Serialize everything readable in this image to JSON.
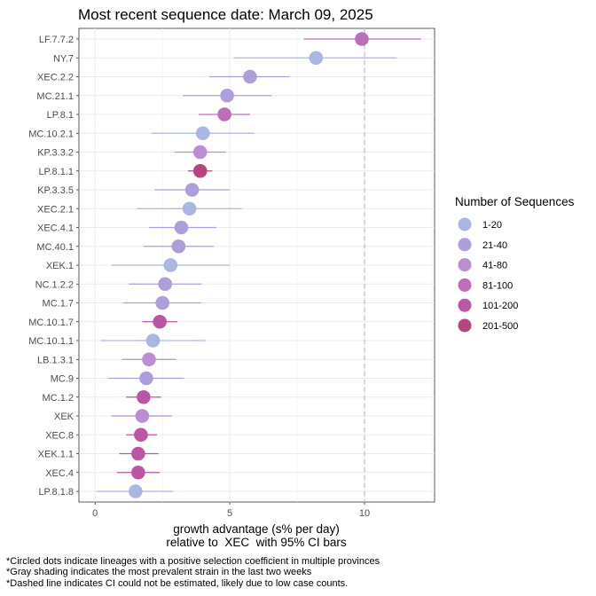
{
  "chart_data": {
    "type": "scatter",
    "title": "Most recent sequence date: March 09, 2025",
    "xlabel_line1": "growth advantage (s% per day)",
    "xlabel_line2": "relative to  XEC  with 95% CI bars",
    "xlim": [
      -0.6,
      12.6
    ],
    "xticks": [
      "0",
      "5",
      "10"
    ],
    "grid": true,
    "legend_position": "right",
    "legend": {
      "title": "Number of Sequences",
      "entries": [
        {
          "label": "1-20",
          "color": "#aab6e4"
        },
        {
          "label": "21-40",
          "color": "#ae9fdc"
        },
        {
          "label": "41-80",
          "color": "#bb8dd4"
        },
        {
          "label": "81-100",
          "color": "#bc6fb8"
        },
        {
          "label": "101-200",
          "color": "#bb56a4"
        },
        {
          "label": "201-500",
          "color": "#b5447f"
        }
      ]
    },
    "reference_line": {
      "x": 10,
      "style": "dashed"
    },
    "points": [
      {
        "lineage": "LF.7.7.2",
        "value": 9.9,
        "lo": 7.75,
        "hi": 12.1,
        "group": "81-100"
      },
      {
        "lineage": "NY.7",
        "value": 8.2,
        "lo": 5.15,
        "hi": 11.2,
        "group": "1-20"
      },
      {
        "lineage": "XEC.2.2",
        "value": 5.75,
        "lo": 4.25,
        "hi": 7.2,
        "group": "21-40"
      },
      {
        "lineage": "MC.21.1",
        "value": 4.9,
        "lo": 3.25,
        "hi": 6.55,
        "group": "21-40"
      },
      {
        "lineage": "LP.8.1",
        "value": 4.8,
        "lo": 3.85,
        "hi": 5.75,
        "group": "81-100"
      },
      {
        "lineage": "MC.10.2.1",
        "value": 4.0,
        "lo": 2.1,
        "hi": 5.9,
        "group": "1-20"
      },
      {
        "lineage": "KP.3.3.2",
        "value": 3.9,
        "lo": 2.95,
        "hi": 4.85,
        "group": "41-80"
      },
      {
        "lineage": "LP.8.1.1",
        "value": 3.9,
        "lo": 3.45,
        "hi": 4.35,
        "group": "201-500"
      },
      {
        "lineage": "KP.3.3.5",
        "value": 3.6,
        "lo": 2.2,
        "hi": 5.0,
        "group": "21-40"
      },
      {
        "lineage": "XEC.2.1",
        "value": 3.5,
        "lo": 1.55,
        "hi": 5.45,
        "group": "1-20"
      },
      {
        "lineage": "XEC.4.1",
        "value": 3.2,
        "lo": 2.0,
        "hi": 4.5,
        "group": "21-40"
      },
      {
        "lineage": "MC.40.1",
        "value": 3.1,
        "lo": 1.8,
        "hi": 4.4,
        "group": "21-40"
      },
      {
        "lineage": "XEK.1",
        "value": 2.8,
        "lo": 0.6,
        "hi": 5.0,
        "group": "1-20"
      },
      {
        "lineage": "NC.1.2.2",
        "value": 2.6,
        "lo": 1.25,
        "hi": 3.95,
        "group": "21-40"
      },
      {
        "lineage": "MC.1.7",
        "value": 2.5,
        "lo": 1.05,
        "hi": 3.95,
        "group": "21-40"
      },
      {
        "lineage": "MC.10.1.7",
        "value": 2.4,
        "lo": 1.75,
        "hi": 3.05,
        "group": "101-200"
      },
      {
        "lineage": "MC.10.1.1",
        "value": 2.15,
        "lo": 0.2,
        "hi": 4.1,
        "group": "1-20"
      },
      {
        "lineage": "LB.1.3.1",
        "value": 2.0,
        "lo": 1.0,
        "hi": 3.0,
        "group": "41-80"
      },
      {
        "lineage": "MC.9",
        "value": 1.9,
        "lo": 0.5,
        "hi": 3.3,
        "group": "21-40"
      },
      {
        "lineage": "MC.1.2",
        "value": 1.8,
        "lo": 1.15,
        "hi": 2.45,
        "group": "101-200"
      },
      {
        "lineage": "XEK",
        "value": 1.75,
        "lo": 0.6,
        "hi": 2.85,
        "group": "41-80"
      },
      {
        "lineage": "XEC.8",
        "value": 1.7,
        "lo": 1.15,
        "hi": 2.3,
        "group": "101-200"
      },
      {
        "lineage": "XEK.1.1",
        "value": 1.6,
        "lo": 0.9,
        "hi": 2.35,
        "group": "101-200"
      },
      {
        "lineage": "XEC.4",
        "value": 1.6,
        "lo": 0.8,
        "hi": 2.4,
        "group": "101-200"
      },
      {
        "lineage": "LP.8.1.8",
        "value": 1.5,
        "lo": 0.05,
        "hi": 2.9,
        "group": "1-20"
      }
    ]
  },
  "footnotes": [
    "*Circled dots indicate lineages with a positive selection coefficient in multiple provinces",
    "*Gray shading indicates the most prevalent strain in the last two weeks",
    "*Dashed line indicates CI could not be estimated, likely due to low case counts."
  ]
}
